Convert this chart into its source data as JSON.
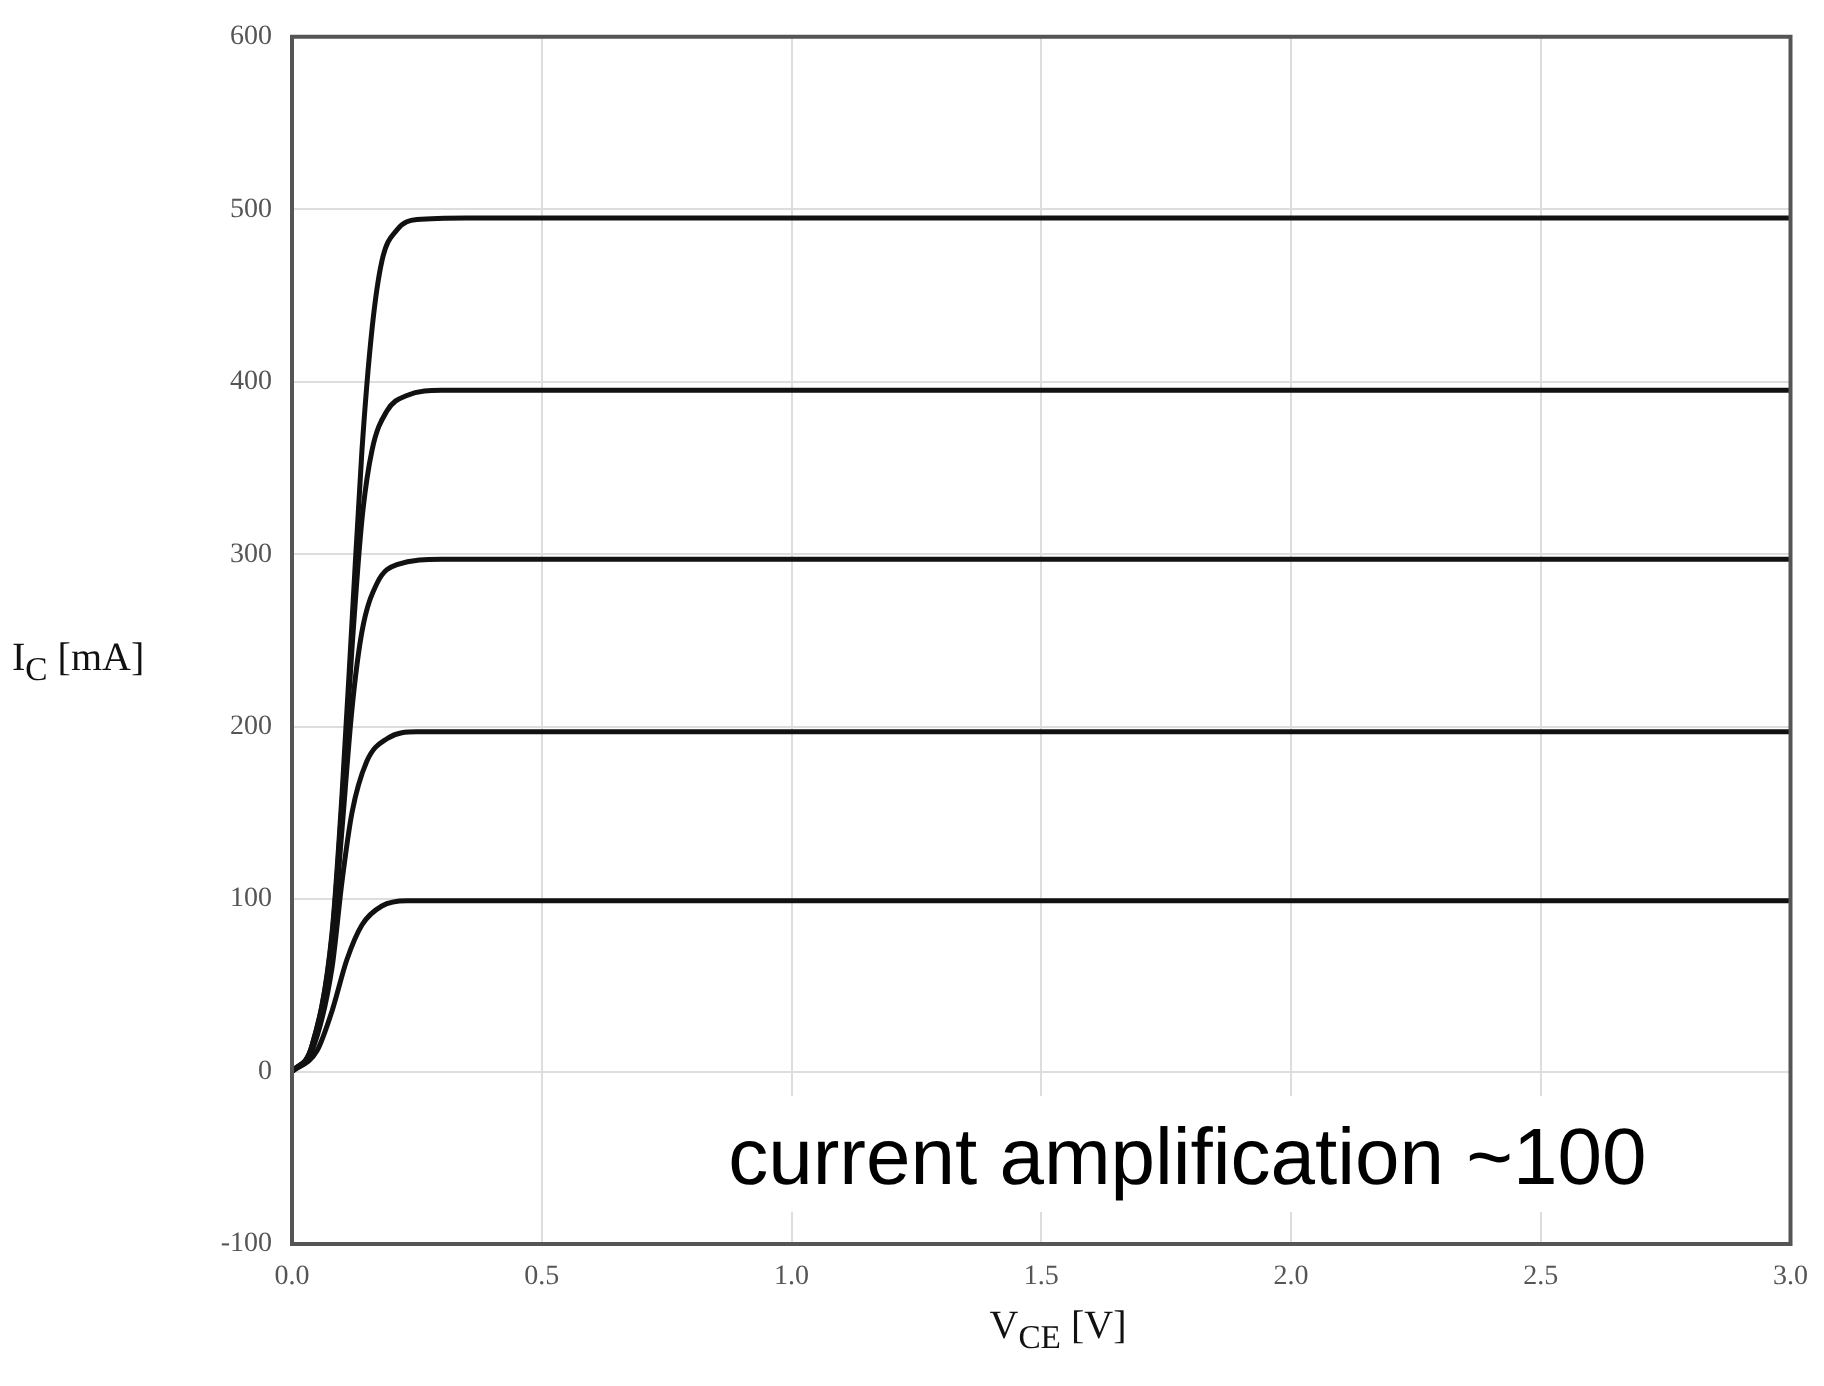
{
  "chart_data": {
    "type": "line",
    "xlabel": "V$_{CE}$ [V]",
    "ylabel": "I$_{C}$ [mA]",
    "xlim": [
      0,
      3
    ],
    "xticks": [
      {
        "value": 0,
        "label": "0.0"
      },
      0.5,
      {
        "value": 1,
        "label": "1.0"
      },
      1.5,
      {
        "value": 2,
        "label": "2.0"
      },
      2.5,
      {
        "value": 3,
        "label": "3.0"
      }
    ],
    "ylim": [
      -100,
      600
    ],
    "yticks": [
      -100,
      0,
      100,
      200,
      300,
      400,
      500,
      600
    ],
    "grid": true,
    "legend": false,
    "marker": "none",
    "line_style": "solid",
    "annotations": [
      "current amplification ~100"
    ],
    "series": [
      {
        "color": "#111111",
        "x": [
          0,
          0.04,
          0.08,
          0.1,
          0.12,
          0.14,
          0.16,
          0.18,
          0.21,
          0.25,
          0.35,
          3
        ],
        "values": [
          0,
          15,
          80,
          160,
          260,
          360,
          430,
          470,
          488,
          494,
          495,
          495
        ]
      },
      {
        "color": "#111111",
        "x": [
          0,
          0.04,
          0.08,
          0.1,
          0.12,
          0.14,
          0.16,
          0.19,
          0.23,
          0.3,
          3
        ],
        "values": [
          0,
          15,
          78,
          155,
          245,
          320,
          360,
          383,
          392,
          395,
          395
        ]
      },
      {
        "color": "#111111",
        "x": [
          0,
          0.04,
          0.08,
          0.1,
          0.12,
          0.14,
          0.17,
          0.21,
          0.3,
          3
        ],
        "values": [
          0,
          14,
          72,
          140,
          210,
          255,
          283,
          294,
          297,
          297
        ]
      },
      {
        "color": "#111111",
        "x": [
          0,
          0.04,
          0.08,
          0.1,
          0.12,
          0.15,
          0.19,
          0.25,
          3
        ],
        "values": [
          0,
          12,
          60,
          110,
          150,
          180,
          193,
          197,
          197
        ]
      },
      {
        "color": "#111111",
        "x": [
          0,
          0.05,
          0.08,
          0.11,
          0.14,
          0.18,
          0.23,
          3
        ],
        "values": [
          0,
          12,
          35,
          65,
          85,
          96,
          99,
          99
        ]
      }
    ]
  }
}
